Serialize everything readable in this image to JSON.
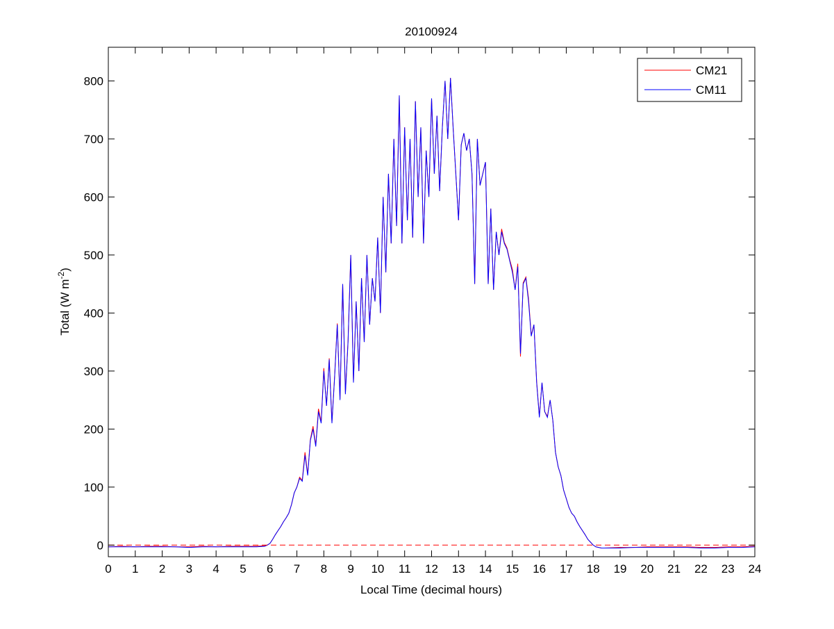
{
  "chart_data": {
    "type": "line",
    "title": "20100924",
    "xlabel": "Local Time (decimal hours)",
    "ylabel": "Total (W m",
    "ylabel_sup": "-2",
    "ylabel_end": ")",
    "xlim": [
      0,
      24
    ],
    "ylim": [
      -20,
      858
    ],
    "xticks": [
      0,
      1,
      2,
      3,
      4,
      5,
      6,
      7,
      8,
      9,
      10,
      11,
      12,
      13,
      14,
      15,
      16,
      17,
      18,
      19,
      20,
      21,
      22,
      23,
      24
    ],
    "yticks": [
      0,
      100,
      200,
      300,
      400,
      500,
      600,
      700,
      800
    ],
    "grid": false,
    "legend_position": "top-right",
    "reference_line": {
      "y": 0,
      "style": "dashed",
      "color": "#ff0000"
    },
    "x": [
      0,
      0.5,
      1,
      1.5,
      2,
      2.5,
      3,
      3.5,
      4,
      4.5,
      5,
      5.5,
      5.8,
      5.9,
      6.0,
      6.1,
      6.2,
      6.3,
      6.4,
      6.5,
      6.6,
      6.7,
      6.8,
      6.9,
      7.0,
      7.1,
      7.2,
      7.3,
      7.4,
      7.5,
      7.6,
      7.7,
      7.8,
      7.9,
      8.0,
      8.1,
      8.2,
      8.3,
      8.4,
      8.5,
      8.6,
      8.7,
      8.8,
      8.9,
      9.0,
      9.1,
      9.2,
      9.3,
      9.4,
      9.5,
      9.6,
      9.7,
      9.8,
      9.9,
      10.0,
      10.1,
      10.2,
      10.3,
      10.4,
      10.5,
      10.6,
      10.7,
      10.8,
      10.9,
      11.0,
      11.1,
      11.2,
      11.3,
      11.4,
      11.5,
      11.6,
      11.7,
      11.8,
      11.9,
      12.0,
      12.1,
      12.2,
      12.3,
      12.4,
      12.5,
      12.6,
      12.7,
      12.8,
      12.9,
      13.0,
      13.1,
      13.2,
      13.3,
      13.4,
      13.5,
      13.6,
      13.7,
      13.8,
      13.9,
      14.0,
      14.1,
      14.2,
      14.3,
      14.4,
      14.5,
      14.6,
      14.7,
      14.8,
      14.9,
      15.0,
      15.1,
      15.2,
      15.3,
      15.4,
      15.5,
      15.6,
      15.7,
      15.8,
      15.9,
      16.0,
      16.1,
      16.2,
      16.3,
      16.4,
      16.5,
      16.6,
      16.7,
      16.8,
      16.9,
      17.0,
      17.1,
      17.2,
      17.3,
      17.4,
      17.5,
      17.6,
      17.7,
      17.8,
      17.9,
      18.0,
      18.1,
      18.2,
      18.3,
      18.4,
      19,
      19.5,
      20,
      20.5,
      21,
      21.5,
      22,
      22.5,
      23,
      23.5,
      24
    ],
    "series": [
      {
        "name": "CM21",
        "color": "#ff0000",
        "values": [
          -3,
          -2,
          -3,
          -2,
          -2,
          -3,
          -3,
          -2,
          -3,
          -2,
          -2,
          -2,
          -1,
          0,
          3,
          10,
          18,
          25,
          32,
          40,
          47,
          55,
          70,
          90,
          100,
          117,
          112,
          160,
          122,
          182,
          205,
          172,
          235,
          212,
          305,
          240,
          322,
          212,
          292,
          382,
          252,
          450,
          262,
          352,
          500,
          282,
          420,
          300,
          460,
          350,
          500,
          380,
          460,
          420,
          530,
          400,
          600,
          470,
          640,
          520,
          700,
          550,
          775,
          520,
          720,
          560,
          700,
          530,
          765,
          600,
          720,
          520,
          680,
          600,
          770,
          640,
          740,
          610,
          720,
          800,
          700,
          805,
          720,
          640,
          560,
          690,
          710,
          680,
          700,
          640,
          450,
          700,
          620,
          640,
          660,
          450,
          580,
          440,
          540,
          500,
          545,
          522,
          512,
          492,
          475,
          440,
          485,
          325,
          452,
          462,
          425,
          362,
          380,
          282,
          222,
          280,
          230,
          222,
          250,
          215,
          160,
          135,
          120,
          95,
          80,
          65,
          55,
          50,
          40,
          32,
          25,
          18,
          10,
          5,
          0,
          -3,
          -4,
          -5,
          -5,
          -4,
          -4,
          -3,
          -3,
          -3,
          -3,
          -4,
          -4,
          -3,
          -3,
          -2
        ]
      },
      {
        "name": "CM11",
        "color": "#0000ff",
        "values": [
          -3,
          -3,
          -3,
          -3,
          -3,
          -3,
          -4,
          -3,
          -3,
          -3,
          -3,
          -3,
          -2,
          0,
          3,
          10,
          18,
          25,
          32,
          40,
          47,
          55,
          70,
          90,
          100,
          115,
          110,
          155,
          120,
          180,
          200,
          170,
          230,
          210,
          300,
          240,
          320,
          210,
          290,
          380,
          250,
          450,
          260,
          350,
          500,
          280,
          420,
          300,
          460,
          350,
          500,
          380,
          460,
          420,
          530,
          400,
          600,
          470,
          640,
          520,
          700,
          550,
          775,
          520,
          720,
          560,
          700,
          530,
          765,
          600,
          720,
          520,
          680,
          600,
          770,
          640,
          740,
          610,
          720,
          800,
          700,
          805,
          720,
          640,
          560,
          690,
          710,
          680,
          700,
          640,
          450,
          700,
          620,
          640,
          660,
          450,
          580,
          440,
          540,
          500,
          540,
          520,
          510,
          490,
          470,
          440,
          480,
          330,
          450,
          460,
          420,
          360,
          380,
          280,
          220,
          280,
          230,
          220,
          250,
          215,
          160,
          135,
          120,
          95,
          80,
          65,
          55,
          50,
          40,
          32,
          25,
          18,
          10,
          5,
          0,
          -3,
          -4,
          -5,
          -5,
          -5,
          -4,
          -4,
          -4,
          -4,
          -4,
          -5,
          -5,
          -4,
          -4,
          -3
        ]
      }
    ]
  }
}
